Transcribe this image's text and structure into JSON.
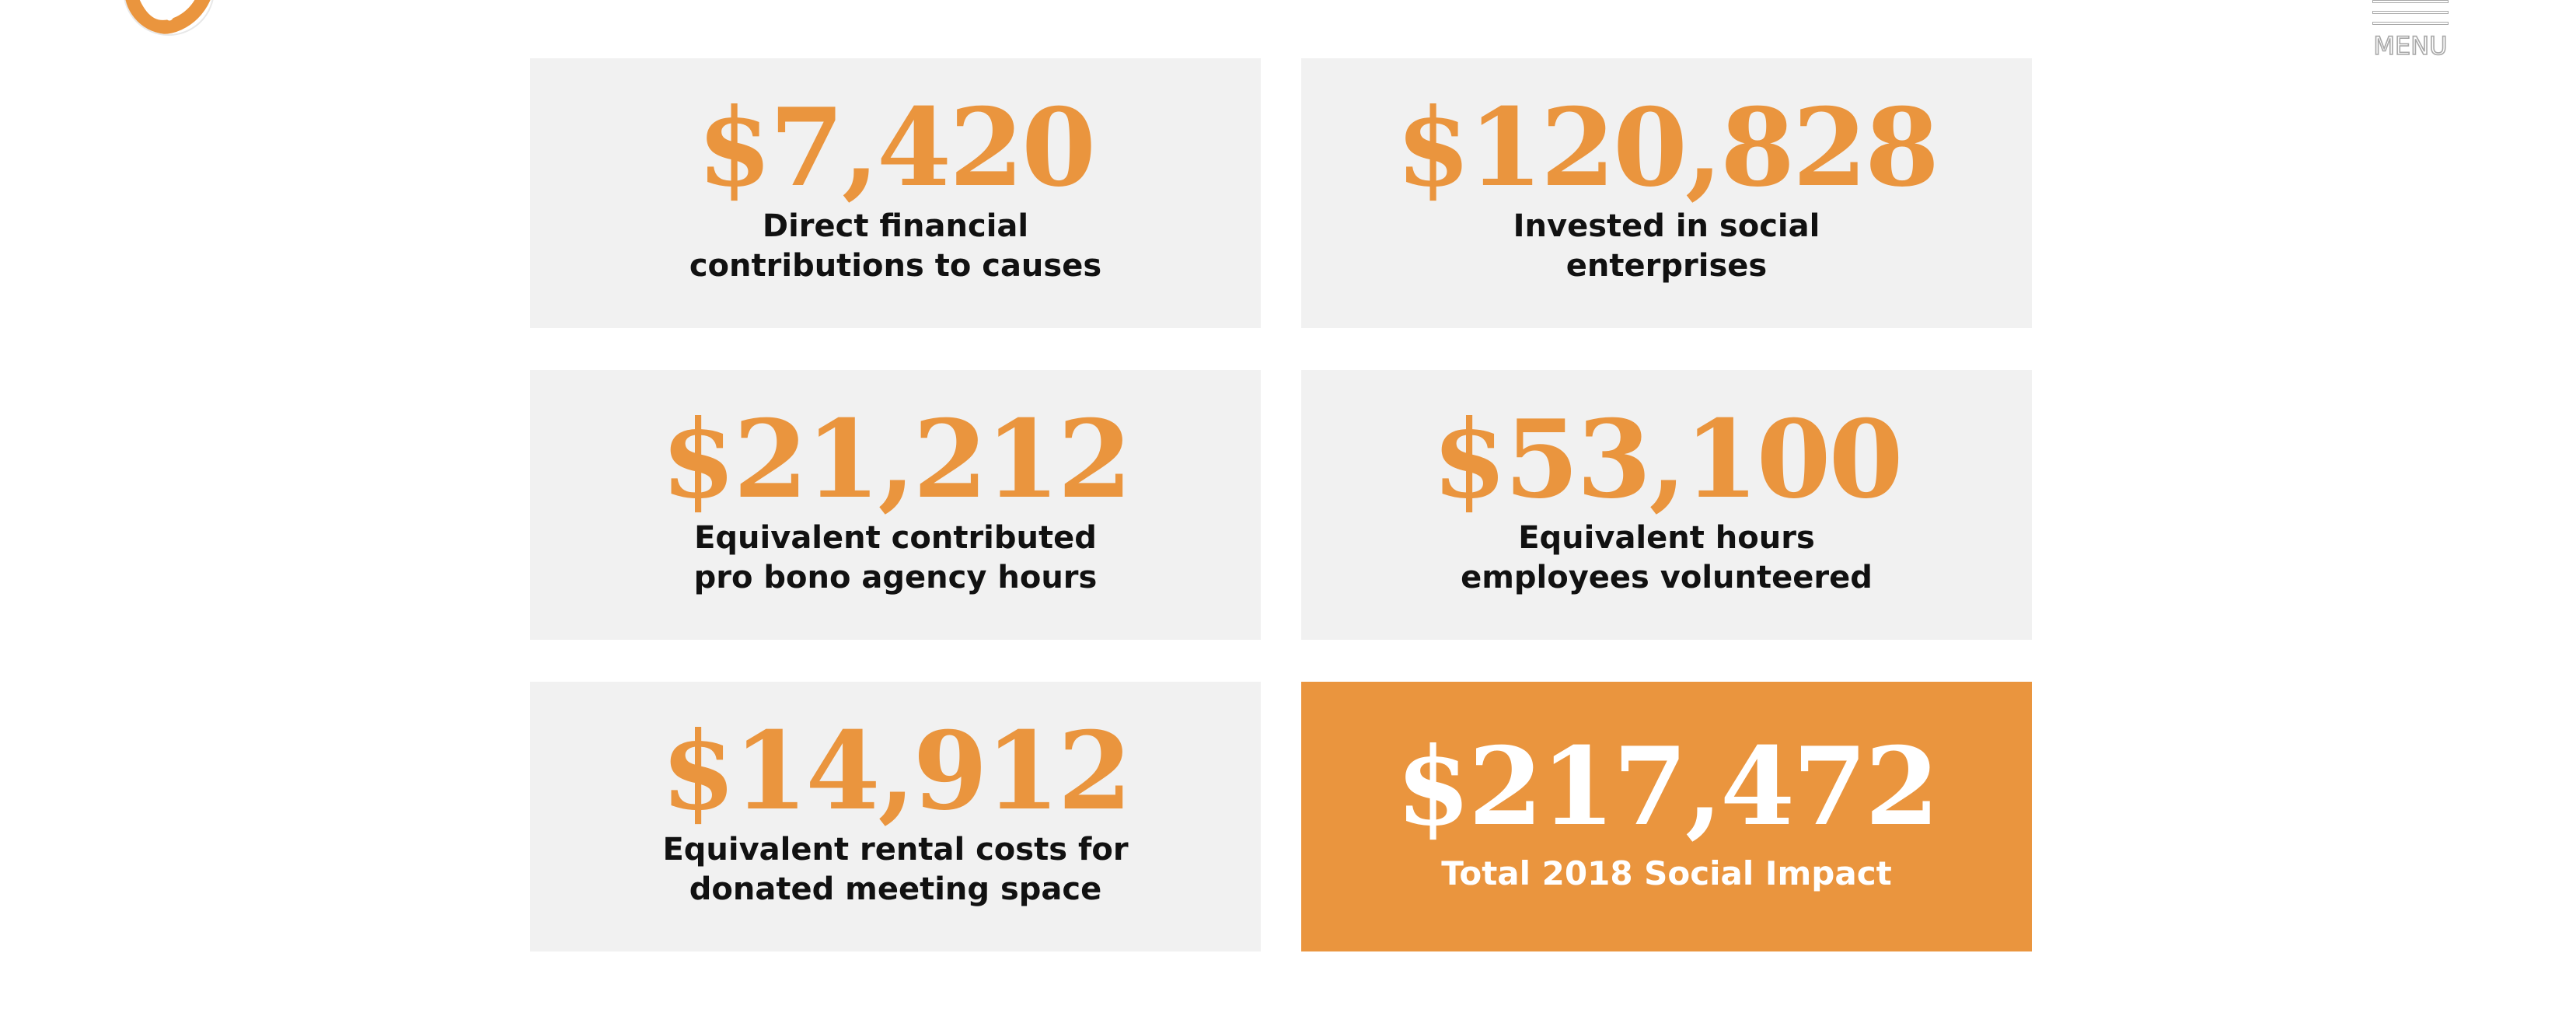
{
  "header": {
    "logo_icon": "orange-check-logo-icon",
    "menu_icon": "hamburger-menu-icon",
    "menu_label": "MENU"
  },
  "colors": {
    "accent": "#ea953e",
    "card_bg": "#f1f1f1",
    "text": "#111111"
  },
  "stats": [
    {
      "amount": "$7,420",
      "line1": "Direct financial",
      "line2": "contributions to causes"
    },
    {
      "amount": "$120,828",
      "line1": "Invested in social",
      "line2": "enterprises"
    },
    {
      "amount": "$21,212",
      "line1": "Equivalent contributed",
      "line2": "pro bono agency hours"
    },
    {
      "amount": "$53,100",
      "line1": "Equivalent hours",
      "line2": "employees volunteered"
    },
    {
      "amount": "$14,912",
      "line1": "Equivalent rental costs for",
      "line2": "donated meeting space"
    }
  ],
  "total": {
    "amount": "$217,472",
    "label": "Total 2018 Social Impact"
  }
}
